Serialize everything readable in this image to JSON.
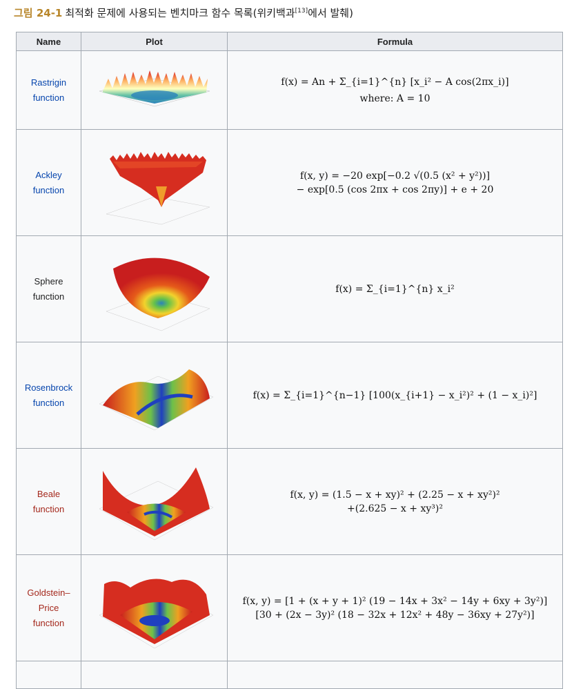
{
  "caption": {
    "figure": "그림 24-1",
    "text": "최적화 문제에 사용되는 벤치마크 함수 목록(위키백과",
    "ref": "[13]",
    "suffix": "에서 발췌)"
  },
  "table": {
    "headers": [
      "Name",
      "Plot",
      "Formula"
    ],
    "rows": [
      {
        "name_line1": "Rastrigin",
        "name_line2": "function",
        "color": "#0645ad",
        "formula": "f(x) = An + Σ_{i=1}^{n} [x_i² − A cos(2πx_i)]",
        "formula_note": "where: A = 10",
        "plot_icon": "rastrigin-surface"
      },
      {
        "name_line1": "Ackley",
        "name_line2": "function",
        "color": "#0645ad",
        "formula": "f(x, y) = −20 exp[−0.2 √(0.5 (x² + y²))]",
        "formula_line2": "− exp[0.5 (cos 2πx + cos 2πy)] + e + 20",
        "plot_icon": "ackley-surface"
      },
      {
        "name_line1": "Sphere",
        "name_line2": "function",
        "color": "#202122",
        "formula": "f(x) = Σ_{i=1}^{n} x_i²",
        "plot_icon": "sphere-surface"
      },
      {
        "name_line1": "Rosenbrock",
        "name_line2": "function",
        "color": "#0645ad",
        "formula": "f(x) = Σ_{i=1}^{n−1} [100(x_{i+1} − x_i²)² + (1 − x_i)²]",
        "plot_icon": "rosenbrock-surface"
      },
      {
        "name_line1": "Beale",
        "name_line2": "function",
        "color": "#a4281c",
        "formula": "f(x, y) = (1.5 − x + xy)² + (2.25 − x + xy²)²",
        "formula_line2": "+(2.625 − x + xy³)²",
        "plot_icon": "beale-surface"
      },
      {
        "name_line1": "Goldstein–",
        "name_line2": "Price",
        "name_line3": "function",
        "color": "#a4281c",
        "formula": "f(x, y) = [1 + (x + y + 1)² (19 − 14x + 3x² − 14y + 6xy + 3y²)]",
        "formula_line2": "[30 + (2x − 3y)² (18 − 32x + 12x² + 48y − 36xy + 27y²)]",
        "plot_icon": "goldstein-price-surface"
      }
    ]
  }
}
